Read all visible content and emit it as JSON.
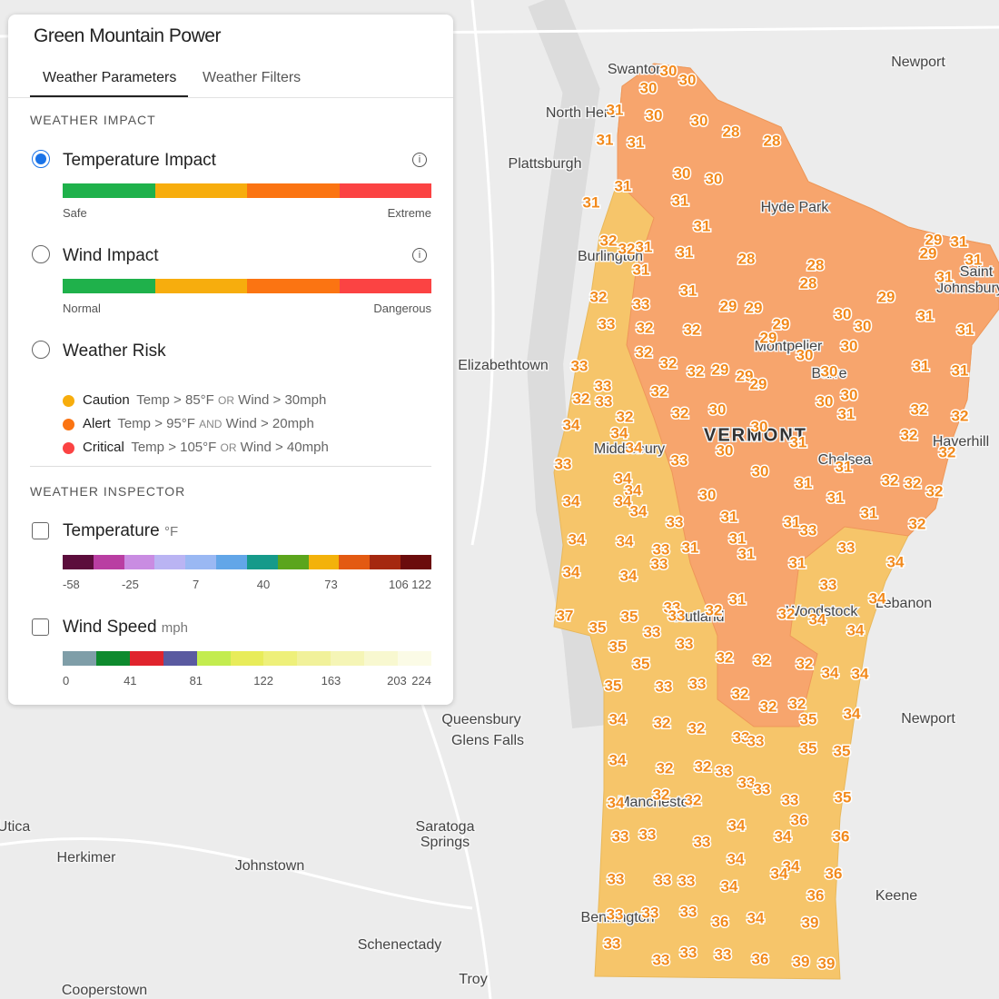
{
  "panel": {
    "title": "Green Mountain Power",
    "tabs": [
      "Weather Parameters",
      "Weather Filters"
    ],
    "weather_impact": {
      "heading": "WEATHER IMPACT",
      "impact_colors": [
        "#1fb14b",
        "#f7ad0d",
        "#fb7412",
        "#fb4343"
      ],
      "options": [
        {
          "label": "Temperature Impact",
          "scale_low": "Safe",
          "scale_high": "Extreme"
        },
        {
          "label": "Wind Impact",
          "scale_low": "Normal",
          "scale_high": "Dangerous"
        },
        {
          "label": "Weather Risk"
        }
      ],
      "risk_levels": [
        {
          "name": "Caution",
          "color": "#f7ad0d",
          "condition_1": "Temp > 85°F",
          "operator": "OR",
          "condition_2": "Wind > 30mph"
        },
        {
          "name": "Alert",
          "color": "#fb7412",
          "condition_1": "Temp > 95°F",
          "operator": "AND",
          "condition_2": "Wind > 20mph"
        },
        {
          "name": "Critical",
          "color": "#fb4343",
          "condition_1": "Temp > 105°F",
          "operator": "OR",
          "condition_2": "Wind > 40mph"
        }
      ]
    },
    "weather_inspector": {
      "heading": "WEATHER INSPECTOR",
      "layers": [
        {
          "label": "Temperature",
          "unit": "°F",
          "colors": [
            "#5c0d3c",
            "#b93ea2",
            "#c98ce2",
            "#bab4f3",
            "#9ab8f3",
            "#62a6e8",
            "#169a8a",
            "#5ba51c",
            "#f3b20b",
            "#e35a12",
            "#a52810",
            "#6b0c0c"
          ],
          "xlim": [
            -58,
            122
          ],
          "xticks": [
            -58,
            -25,
            7,
            40,
            73,
            106,
            122
          ]
        },
        {
          "label": "Wind Speed",
          "unit": "mph",
          "colors": [
            "#7f9ea8",
            "#0e8a2e",
            "#e0242d",
            "#5a5aa0",
            "#c3ec4f",
            "#e8ec5a",
            "#eef07a",
            "#f1f19a",
            "#f5f5b6",
            "#f8f8d0",
            "#fbfbe6"
          ],
          "xlim": [
            0,
            224
          ],
          "xticks": [
            0,
            41,
            81,
            122,
            163,
            203,
            224
          ]
        }
      ]
    }
  },
  "map": {
    "label_color": "#f28a1c",
    "places": [
      "Swanton",
      "North Hero",
      "Plattsburgh",
      "Hyde Park",
      "Newport",
      "Burlington",
      "Elizabethtown",
      "Middlebury",
      "VERMONT",
      "Chelsea",
      "Barre",
      "Montpelier",
      "Saint",
      "Johnsbury",
      "Haverhill",
      "Woodstock",
      "Lebanon",
      "Newport",
      "Queensbury",
      "Glens Falls",
      "Saratoga",
      "Springs",
      "Utica",
      "Herkimer",
      "Johnstown",
      "Schenectady",
      "Troy",
      "Cooperstown",
      "Keene",
      "Bennington",
      "Manchester",
      "Rutland"
    ],
    "temperatures": [
      30,
      30,
      30,
      31,
      30,
      30,
      28,
      28,
      31,
      31,
      30,
      30,
      31,
      31,
      31,
      31,
      32,
      32,
      31,
      31,
      28,
      28,
      28,
      29,
      31,
      29,
      31,
      31,
      31,
      32,
      33,
      31,
      29,
      29,
      29,
      30,
      33,
      32,
      32,
      29,
      30,
      29,
      31,
      31,
      32,
      30,
      30,
      33,
      32,
      32,
      29,
      29,
      29,
      30,
      31,
      31,
      33,
      32,
      33,
      32,
      30,
      30,
      31,
      30,
      32,
      32,
      32,
      32,
      34,
      34,
      30,
      31,
      32,
      32,
      34,
      30,
      33,
      33,
      31,
      30,
      34,
      31,
      32,
      32,
      32,
      34,
      34,
      34,
      30,
      31,
      34,
      31,
      31,
      33,
      31,
      33,
      32,
      34,
      34,
      31,
      31,
      33,
      31,
      33,
      33,
      31,
      34,
      34,
      34,
      33,
      34,
      31,
      33,
      33,
      32,
      37,
      35,
      32,
      34,
      35,
      33,
      34,
      35,
      33,
      32,
      32,
      32,
      35,
      34,
      34,
      35,
      33,
      33,
      32,
      32,
      32,
      35,
      34,
      34,
      32,
      32,
      33,
      33,
      35,
      35,
      34,
      32,
      32,
      33,
      33,
      33,
      34,
      32,
      32,
      33,
      35,
      36,
      34,
      33,
      33,
      33,
      34,
      36,
      34,
      34,
      34,
      36,
      33,
      33,
      33,
      34,
      36,
      33,
      33,
      33,
      36,
      34,
      39,
      33,
      33,
      33,
      33,
      36,
      39,
      39
    ]
  }
}
